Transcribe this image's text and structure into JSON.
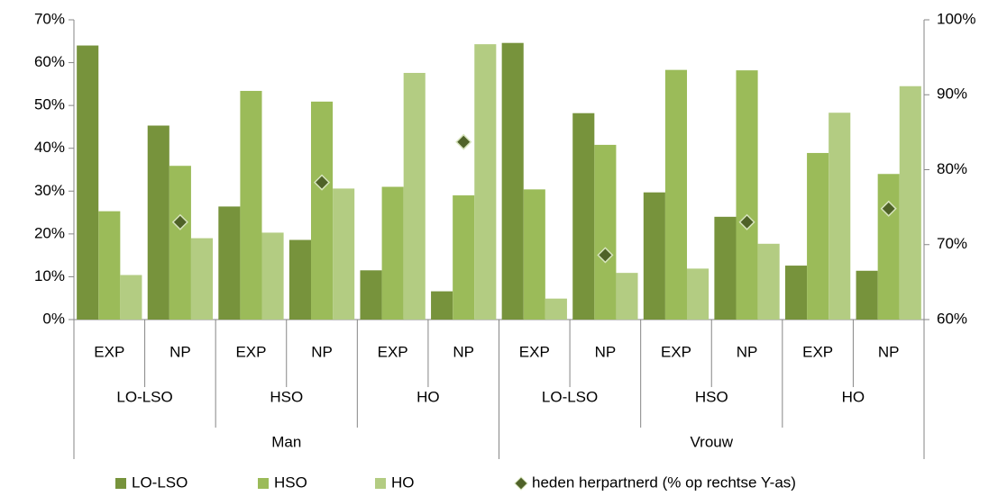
{
  "chart_data": {
    "type": "bar",
    "categories": [
      "EXP",
      "NP",
      "EXP",
      "NP",
      "EXP",
      "NP",
      "EXP",
      "NP",
      "EXP",
      "NP",
      "EXP",
      "NP"
    ],
    "groups": [
      "LO-LSO",
      "HSO",
      "HO",
      "LO-LSO",
      "HSO",
      "HO"
    ],
    "supergroups": [
      "Man",
      "Vrouw"
    ],
    "series": [
      {
        "name": "LO-LSO",
        "color": "#77933c",
        "values": [
          64,
          45.3,
          26.4,
          18.6,
          11.5,
          6.6,
          64.6,
          48.2,
          29.7,
          24,
          12.6,
          11.4
        ]
      },
      {
        "name": "HSO",
        "color": "#9bbb59",
        "values": [
          25.3,
          35.9,
          53.4,
          50.9,
          31,
          29,
          30.4,
          40.8,
          58.3,
          58.2,
          38.9,
          34
        ]
      },
      {
        "name": "HO",
        "color": "#b3cc82",
        "values": [
          10.4,
          19,
          20.3,
          30.6,
          57.6,
          64.3,
          4.9,
          10.9,
          11.9,
          17.7,
          48.3,
          54.5
        ]
      },
      {
        "name": "heden herpartnerd (% op rechtse Y-as)",
        "color": "#4f6228",
        "axis": "y2",
        "marker": "diamond",
        "values": [
          null,
          73,
          null,
          78.3,
          null,
          83.7,
          null,
          68.6,
          null,
          73,
          null,
          74.8
        ]
      }
    ],
    "ylim": [
      0,
      70
    ],
    "yticks": [
      {
        "value": 0,
        "label": "0%"
      },
      {
        "value": 10,
        "label": "10%"
      },
      {
        "value": 20,
        "label": "20%"
      },
      {
        "value": 30,
        "label": "30%"
      },
      {
        "value": 40,
        "label": "40%"
      },
      {
        "value": 50,
        "label": "50%"
      },
      {
        "value": 60,
        "label": "60%"
      },
      {
        "value": 70,
        "label": "70%"
      }
    ],
    "y2lim": [
      60,
      100
    ],
    "y2ticks": [
      {
        "value": 60,
        "label": "60%"
      },
      {
        "value": 70,
        "label": "70%"
      },
      {
        "value": 80,
        "label": "80%"
      },
      {
        "value": 90,
        "label": "90%"
      },
      {
        "value": 100,
        "label": "100%"
      }
    ],
    "legend": "bottom"
  }
}
